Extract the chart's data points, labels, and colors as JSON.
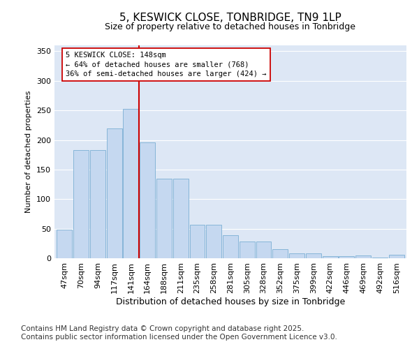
{
  "title": "5, KESWICK CLOSE, TONBRIDGE, TN9 1LP",
  "subtitle": "Size of property relative to detached houses in Tonbridge",
  "xlabel": "Distribution of detached houses by size in Tonbridge",
  "ylabel": "Number of detached properties",
  "categories": [
    "47sqm",
    "70sqm",
    "94sqm",
    "117sqm",
    "141sqm",
    "164sqm",
    "188sqm",
    "211sqm",
    "235sqm",
    "258sqm",
    "281sqm",
    "305sqm",
    "328sqm",
    "352sqm",
    "375sqm",
    "399sqm",
    "422sqm",
    "446sqm",
    "469sqm",
    "492sqm",
    "516sqm"
  ],
  "values": [
    48,
    183,
    183,
    219,
    253,
    196,
    135,
    135,
    57,
    57,
    39,
    28,
    28,
    15,
    8,
    8,
    4,
    4,
    5,
    1,
    6
  ],
  "bar_color": "#c5d8f0",
  "bar_edge_color": "#7aafd4",
  "vline_color": "#cc0000",
  "annotation_text": "5 KESWICK CLOSE: 148sqm\n← 64% of detached houses are smaller (768)\n36% of semi-detached houses are larger (424) →",
  "annotation_box_color": "#ffffff",
  "annotation_box_edge": "#cc0000",
  "ylim": [
    0,
    360
  ],
  "yticks": [
    0,
    50,
    100,
    150,
    200,
    250,
    300,
    350
  ],
  "background_color": "#dde7f5",
  "footer": "Contains HM Land Registry data © Crown copyright and database right 2025.\nContains public sector information licensed under the Open Government Licence v3.0.",
  "title_fontsize": 11,
  "subtitle_fontsize": 9,
  "xlabel_fontsize": 9,
  "ylabel_fontsize": 8,
  "tick_fontsize": 8,
  "footer_fontsize": 7.5
}
